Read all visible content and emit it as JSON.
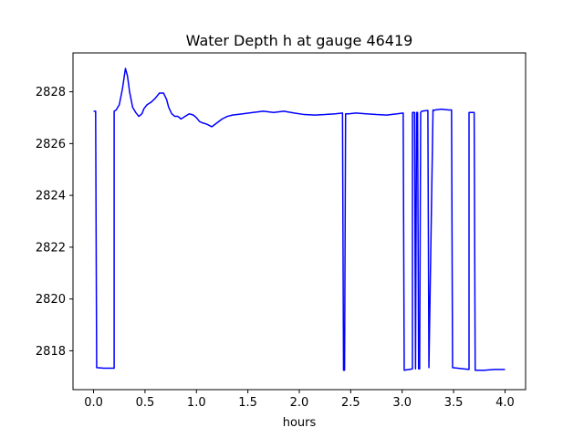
{
  "chart_data": {
    "type": "line",
    "title": "Water Depth h at gauge 46419",
    "xlabel": "hours",
    "ylabel": "",
    "xlim": [
      -0.2,
      4.2
    ],
    "ylim": [
      2816.5,
      2829.5
    ],
    "xticks": [
      0.0,
      0.5,
      1.0,
      1.5,
      2.0,
      2.5,
      3.0,
      3.5,
      4.0
    ],
    "xtick_labels": [
      "0.0",
      "0.5",
      "1.0",
      "1.5",
      "2.0",
      "2.5",
      "3.0",
      "3.5",
      "4.0"
    ],
    "yticks": [
      2818,
      2820,
      2822,
      2824,
      2826,
      2828
    ],
    "ytick_labels": [
      "2818",
      "2820",
      "2822",
      "2824",
      "2826",
      "2828"
    ],
    "grid": false,
    "series": [
      {
        "color": "#0000ff",
        "x": [
          0.0,
          0.02,
          0.03,
          0.1,
          0.2,
          0.2,
          0.22,
          0.25,
          0.28,
          0.31,
          0.33,
          0.35,
          0.38,
          0.41,
          0.44,
          0.47,
          0.49,
          0.52,
          0.56,
          0.6,
          0.64,
          0.68,
          0.71,
          0.73,
          0.76,
          0.79,
          0.82,
          0.85,
          0.89,
          0.93,
          0.97,
          1.0,
          1.03,
          1.06,
          1.1,
          1.15,
          1.2,
          1.25,
          1.3,
          1.35,
          1.45,
          1.55,
          1.65,
          1.75,
          1.85,
          1.95,
          2.05,
          2.15,
          2.25,
          2.35,
          2.42,
          2.43,
          2.44,
          2.45,
          2.48,
          2.55,
          2.65,
          2.75,
          2.85,
          2.95,
          3.01,
          3.02,
          3.1,
          3.1,
          3.12,
          3.13,
          3.14,
          3.15,
          3.16,
          3.17,
          3.18,
          3.19,
          3.25,
          3.26,
          3.3,
          3.3,
          3.31,
          3.32,
          3.38,
          3.45,
          3.48,
          3.49,
          3.6,
          3.65,
          3.65,
          3.68,
          3.7,
          3.71,
          3.8,
          3.9,
          4.0
        ],
        "y": [
          2827.25,
          2827.25,
          2817.35,
          2817.33,
          2817.33,
          2827.25,
          2827.3,
          2827.5,
          2828.1,
          2828.9,
          2828.6,
          2828.0,
          2827.4,
          2827.2,
          2827.05,
          2827.15,
          2827.35,
          2827.5,
          2827.6,
          2827.75,
          2827.95,
          2827.95,
          2827.7,
          2827.4,
          2827.15,
          2827.05,
          2827.05,
          2826.95,
          2827.05,
          2827.15,
          2827.1,
          2827.0,
          2826.85,
          2826.8,
          2826.75,
          2826.65,
          2826.8,
          2826.95,
          2827.05,
          2827.1,
          2827.15,
          2827.2,
          2827.25,
          2827.2,
          2827.25,
          2827.18,
          2827.12,
          2827.1,
          2827.12,
          2827.15,
          2827.18,
          2817.25,
          2817.25,
          2827.15,
          2827.15,
          2827.18,
          2827.15,
          2827.12,
          2827.1,
          2827.15,
          2827.18,
          2817.25,
          2817.3,
          2827.2,
          2827.2,
          2817.3,
          2827.2,
          2827.2,
          2817.3,
          2817.3,
          2827.2,
          2827.25,
          2827.28,
          2817.35,
          2827.3,
          2827.3,
          2827.28,
          2827.3,
          2827.33,
          2827.3,
          2827.3,
          2817.35,
          2817.3,
          2817.28,
          2827.2,
          2827.2,
          2827.2,
          2817.25,
          2817.25,
          2817.28,
          2817.28
        ]
      }
    ]
  }
}
